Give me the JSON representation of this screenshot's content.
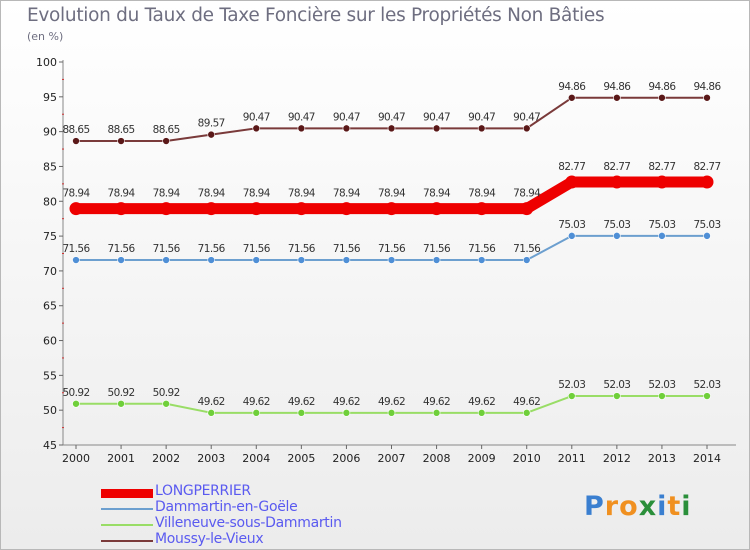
{
  "title": "Evolution du Taux de Taxe Foncière sur les Propriétés Non Bâties",
  "unit_label": "(en %)",
  "chart_data": {
    "type": "line",
    "title": "Evolution du Taux de Taxe Foncière sur les Propriétés Non Bâties",
    "ylabel": "(en %)",
    "xlabel": "",
    "ylim": [
      45,
      100
    ],
    "yticks": [
      45,
      50,
      55,
      60,
      65,
      70,
      75,
      80,
      85,
      90,
      95,
      100
    ],
    "categories": [
      "2000",
      "2001",
      "2002",
      "2003",
      "2004",
      "2005",
      "2006",
      "2007",
      "2008",
      "2009",
      "2010",
      "2011",
      "2012",
      "2013",
      "2014"
    ],
    "series": [
      {
        "name": "LONGPERRIER",
        "color": "#ee0000",
        "markerColor": "#ee0000",
        "emphasis": true,
        "values": [
          78.94,
          78.94,
          78.94,
          78.94,
          78.94,
          78.94,
          78.94,
          78.94,
          78.94,
          78.94,
          78.94,
          82.77,
          82.77,
          82.77,
          82.77
        ],
        "labels": [
          "78.94",
          "78.94",
          "78.94",
          "78.94",
          "78.94",
          "78.94",
          "78.94",
          "78.94",
          "78.94",
          "78.94",
          "78.94",
          "82.77",
          "82.77",
          "82.77",
          "82.77"
        ]
      },
      {
        "name": "Dammartin-en-Goële",
        "color": "#6c9fcf",
        "markerColor": "#4f8fd6",
        "emphasis": false,
        "values": [
          71.56,
          71.56,
          71.56,
          71.56,
          71.56,
          71.56,
          71.56,
          71.56,
          71.56,
          71.56,
          71.56,
          75.03,
          75.03,
          75.03,
          75.03
        ],
        "labels": [
          "71.56",
          "71.56",
          "71.56",
          "71.56",
          "71.56",
          "71.56",
          "71.56",
          "71.56",
          "71.56",
          "71.56",
          "71.56",
          "75.03",
          "75.03",
          "75.03",
          "75.03"
        ]
      },
      {
        "name": "Villeneuve-sous-Dammartin",
        "color": "#99dd66",
        "markerColor": "#6fcf3a",
        "emphasis": false,
        "values": [
          50.92,
          50.92,
          50.92,
          49.62,
          49.62,
          49.62,
          49.62,
          49.62,
          49.62,
          49.62,
          49.62,
          52.03,
          52.03,
          52.03,
          52.03
        ],
        "labels": [
          "50.92",
          "50.92",
          "50.92",
          "49.62",
          "49.62",
          "49.62",
          "49.62",
          "49.62",
          "49.62",
          "49.62",
          "49.62",
          "52.03",
          "52.03",
          "52.03",
          "52.03"
        ]
      },
      {
        "name": "Moussy-le-Vieux",
        "color": "#7a3a3a",
        "markerColor": "#5a1818",
        "emphasis": false,
        "values": [
          88.65,
          88.65,
          88.65,
          89.57,
          90.47,
          90.47,
          90.47,
          90.47,
          90.47,
          90.47,
          90.47,
          94.86,
          94.86,
          94.86,
          94.86
        ],
        "labels": [
          "88.65",
          "88.65",
          "88.65",
          "89.57",
          "90.47",
          "90.47",
          "90.47",
          "90.47",
          "90.47",
          "90.47",
          "90.47",
          "94.86",
          "94.86",
          "94.86",
          "94.86"
        ]
      }
    ],
    "grid": false,
    "legend": "bottom-left"
  },
  "legend": [
    {
      "label": "LONGPERRIER",
      "color": "#ee0000"
    },
    {
      "label": "Dammartin-en-Goële",
      "color": "#6c9fcf"
    },
    {
      "label": "Villeneuve-sous-Dammartin",
      "color": "#99dd66"
    },
    {
      "label": "Moussy-le-Vieux",
      "color": "#7a3a3a"
    }
  ],
  "logo": {
    "letters": [
      "P",
      "r",
      "o",
      "x",
      "i",
      "t",
      "i"
    ],
    "colors": [
      "#3a7fd0",
      "#f09020",
      "#f09020",
      "#2a8f3a",
      "#3a7fd0",
      "#f09020",
      "#2a8f3a"
    ]
  }
}
